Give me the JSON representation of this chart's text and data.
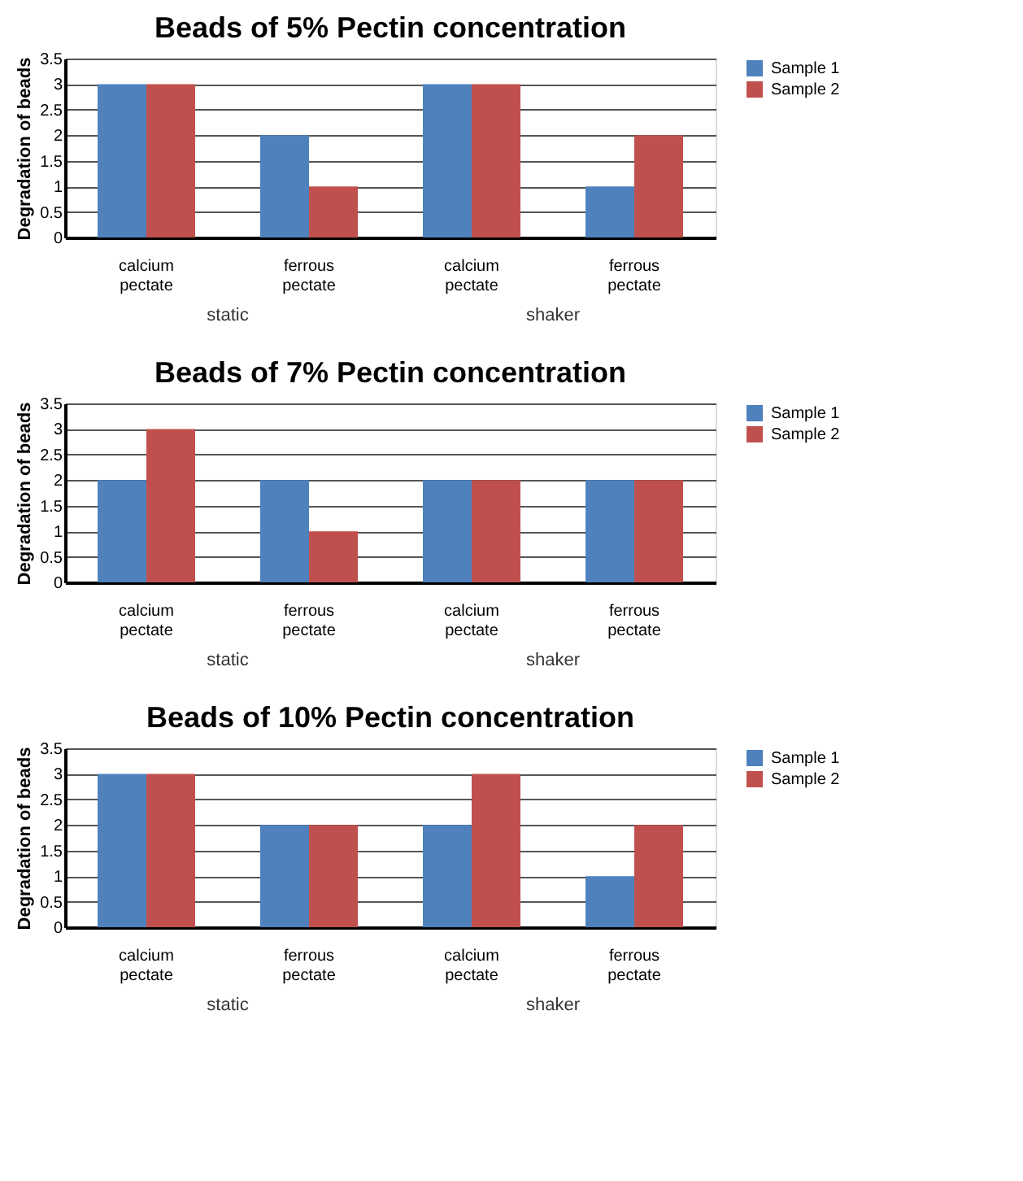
{
  "chart_data": [
    {
      "type": "bar",
      "title": "Beads of 5% Pectin concentration",
      "ylabel": "Degradation of beads",
      "categories": [
        "calcium pectate",
        "ferrous pectate",
        "calcium pectate",
        "ferrous pectate"
      ],
      "annotations": [
        "static",
        "shaker"
      ],
      "ylim": [
        0,
        3.5
      ],
      "yticks": [
        0,
        0.5,
        1,
        1.5,
        2,
        2.5,
        3,
        3.5
      ],
      "grid": "y",
      "legend": "right",
      "series": [
        {
          "name": "Sample 1",
          "color": "#4f81bd",
          "values": [
            3,
            2,
            3,
            1
          ]
        },
        {
          "name": "Sample 2",
          "color": "#c0504d",
          "values": [
            3,
            1,
            3,
            2
          ]
        }
      ]
    },
    {
      "type": "bar",
      "title": "Beads of 7% Pectin concentration",
      "ylabel": "Degradation of beads",
      "categories": [
        "calcium pectate",
        "ferrous pectate",
        "calcium pectate",
        "ferrous pectate"
      ],
      "annotations": [
        "static",
        "shaker"
      ],
      "ylim": [
        0,
        3.5
      ],
      "yticks": [
        0,
        0.5,
        1,
        1.5,
        2,
        2.5,
        3,
        3.5
      ],
      "grid": "y",
      "legend": "right",
      "series": [
        {
          "name": "Sample 1",
          "color": "#4f81bd",
          "values": [
            2,
            2,
            2,
            2
          ]
        },
        {
          "name": "Sample 2",
          "color": "#c0504d",
          "values": [
            3,
            1,
            2,
            2
          ]
        }
      ]
    },
    {
      "type": "bar",
      "title": "Beads of 10% Pectin concentration",
      "ylabel": "Degradation of beads",
      "categories": [
        "calcium pectate",
        "ferrous pectate",
        "calcium pectate",
        "ferrous pectate"
      ],
      "annotations": [
        "static",
        "shaker"
      ],
      "ylim": [
        0,
        3.5
      ],
      "yticks": [
        0,
        0.5,
        1,
        1.5,
        2,
        2.5,
        3,
        3.5
      ],
      "grid": "y",
      "legend": "right",
      "series": [
        {
          "name": "Sample 1",
          "color": "#4f81bd",
          "values": [
            3,
            2,
            2,
            1
          ]
        },
        {
          "name": "Sample 2",
          "color": "#c0504d",
          "values": [
            3,
            2,
            3,
            2
          ]
        }
      ]
    }
  ]
}
